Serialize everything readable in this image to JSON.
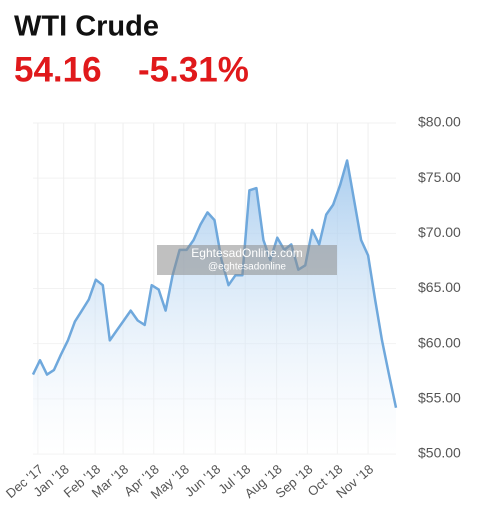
{
  "header": {
    "title": "WTI Crude",
    "price": "54.16",
    "change": "-5.31%"
  },
  "watermark": {
    "site": "EghtesadOnline.com",
    "handle": "@eghtesadonline"
  },
  "chart_data": {
    "type": "area",
    "color": "#6fa8dc",
    "x": [
      0,
      1,
      2,
      3,
      4,
      5,
      6,
      7,
      8,
      9,
      10,
      11,
      12,
      13,
      14,
      15,
      16,
      17,
      18,
      19,
      20,
      21,
      22,
      23,
      24,
      25,
      26,
      27,
      28,
      29,
      30,
      31,
      32,
      33,
      34,
      35,
      36,
      37,
      38,
      39,
      40,
      41,
      42,
      43,
      44,
      45,
      46,
      47,
      48,
      49,
      50,
      51,
      52
    ],
    "values": [
      57.2,
      58.5,
      57.2,
      57.6,
      59.0,
      60.3,
      62.0,
      63.0,
      64.0,
      65.8,
      65.3,
      60.3,
      61.2,
      62.1,
      63.0,
      62.1,
      61.7,
      65.3,
      64.9,
      63.0,
      66.2,
      68.5,
      68.5,
      69.4,
      70.8,
      71.9,
      71.2,
      67.6,
      65.3,
      66.2,
      66.2,
      73.9,
      74.1,
      69.4,
      67.6,
      69.6,
      68.5,
      69.0,
      66.7,
      67.1,
      70.3,
      69.0,
      71.7,
      72.6,
      74.4,
      76.6,
      73.0,
      69.4,
      68.0,
      64.0,
      60.3,
      57.2,
      54.2
    ],
    "xlim": [
      0,
      52
    ],
    "xticks": [
      {
        "value": 0.7,
        "label": "Dec '17"
      },
      {
        "value": 4.4,
        "label": "Jan '18"
      },
      {
        "value": 8.9,
        "label": "Feb '18"
      },
      {
        "value": 12.9,
        "label": "Mar '18"
      },
      {
        "value": 17.3,
        "label": "Apr '18"
      },
      {
        "value": 21.6,
        "label": "May '18"
      },
      {
        "value": 26.1,
        "label": "Jun '18"
      },
      {
        "value": 30.4,
        "label": "Jul '18"
      },
      {
        "value": 34.9,
        "label": "Aug '18"
      },
      {
        "value": 39.3,
        "label": "Sep '18"
      },
      {
        "value": 43.6,
        "label": "Oct '18"
      },
      {
        "value": 48.0,
        "label": "Nov '18"
      }
    ],
    "ylim": [
      50,
      80
    ],
    "yticks": [
      {
        "value": 50,
        "label": "$50.00"
      },
      {
        "value": 55,
        "label": "$55.00"
      },
      {
        "value": 60,
        "label": "$60.00"
      },
      {
        "value": 65,
        "label": "$65.00"
      },
      {
        "value": 70,
        "label": "$70.00"
      },
      {
        "value": 75,
        "label": "$75.00"
      },
      {
        "value": 80,
        "label": "$80.00"
      }
    ],
    "grid": true
  }
}
